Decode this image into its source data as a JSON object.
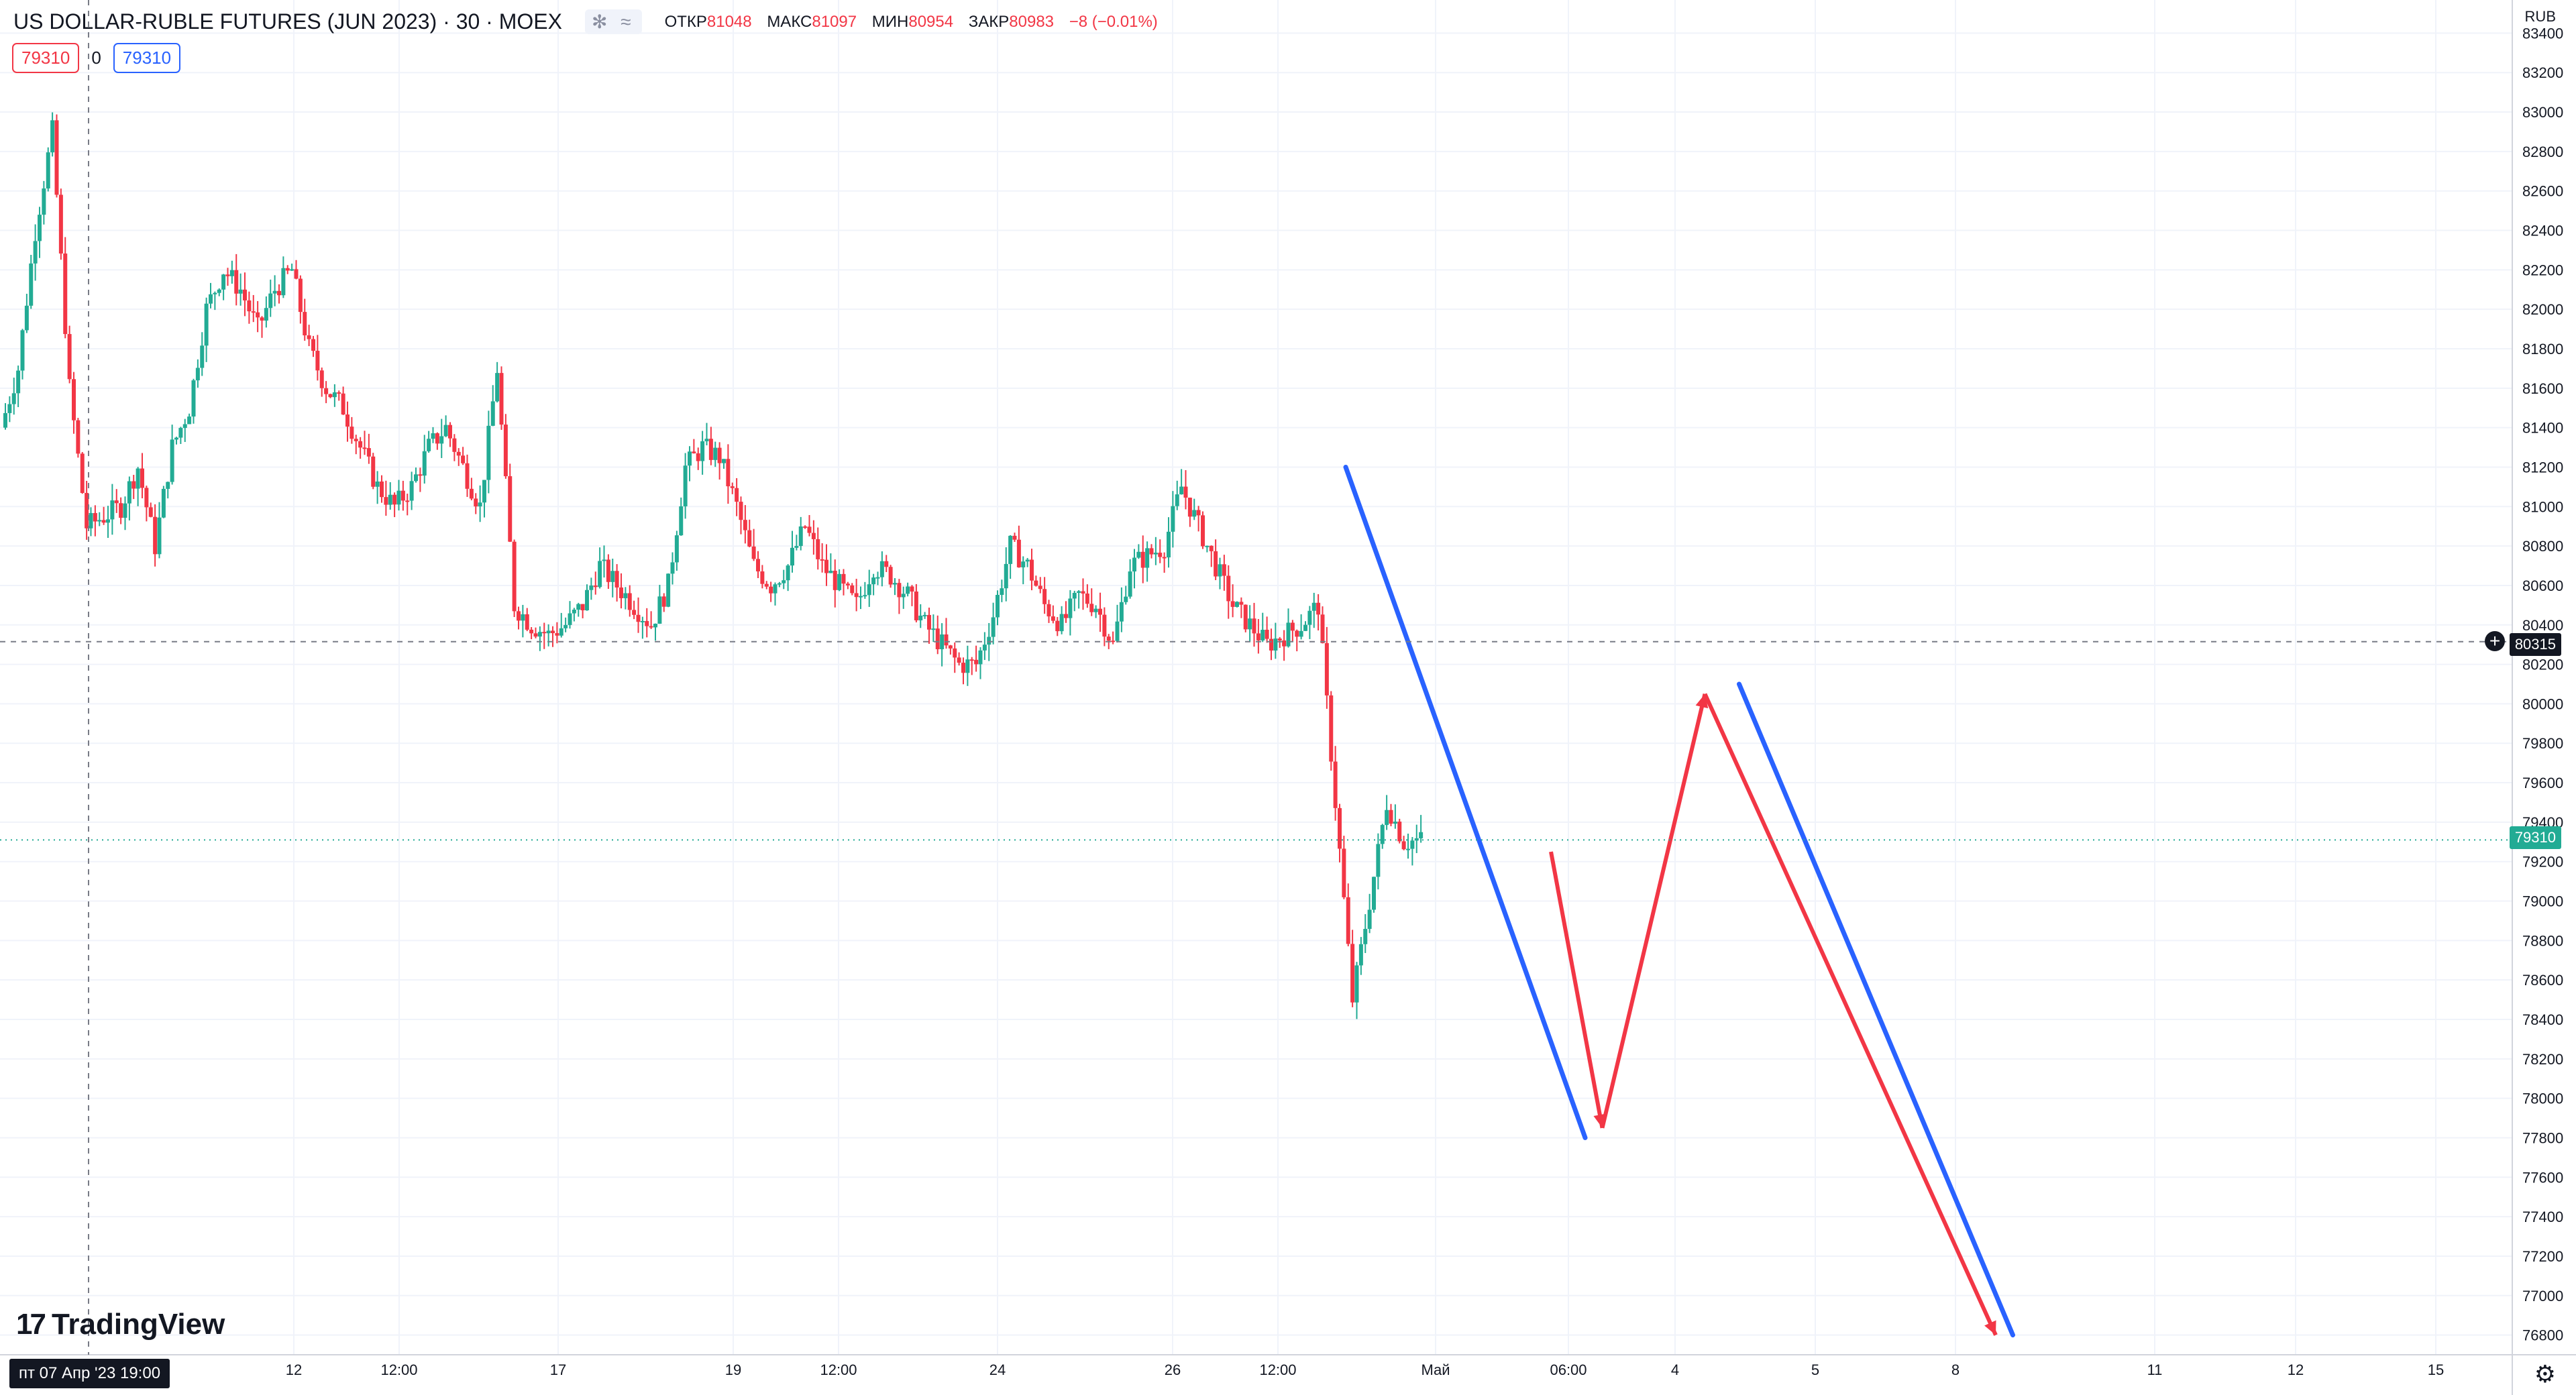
{
  "symbol_title": "US DOLLAR-RUBLE FUTURES (JUN 2023) · 30 · MOEX",
  "header_icons": "✻ ≈",
  "ohlc": {
    "open_label": "ОТКР",
    "open": "81048",
    "high_label": "МАКС",
    "high": "81097",
    "low_label": "МИН",
    "low": "80954",
    "close_label": "ЗАКР",
    "close": "80983",
    "change": "−8 (−0.01%)"
  },
  "trade": {
    "sell": "79310",
    "spread": "0",
    "buy": "79310"
  },
  "brand": {
    "mark": "17",
    "name": "TradingView"
  },
  "currency": "RUB",
  "crosshair": {
    "price": "80315",
    "date_label": "пт 07 Апр '23   19:00"
  },
  "last_price": "79310",
  "colors": {
    "up": "#22ab94",
    "down": "#f23645",
    "blue": "#2962ff",
    "arrow_red": "#f23645",
    "grid": "#f0f3fa"
  },
  "icons": {
    "plus": "plus-circle-icon",
    "settings": "gear-icon"
  },
  "y_axis_ticks": [
    "83400",
    "83200",
    "83000",
    "82800",
    "82600",
    "82400",
    "82200",
    "82000",
    "81800",
    "81600",
    "81400",
    "81200",
    "81000",
    "80800",
    "80600",
    "80400",
    "80200",
    "80000",
    "79800",
    "79600",
    "79400",
    "79200",
    "79000",
    "78800",
    "78600",
    "78400",
    "78200",
    "78000",
    "77800",
    "77600",
    "77400",
    "77200",
    "77000",
    "76800"
  ],
  "x_axis_labels": [
    "12",
    "12:00",
    "17",
    "19",
    "12:00",
    "24",
    "26",
    "12:00",
    "Май",
    "06:00",
    "4",
    "5",
    "8",
    "11",
    "12",
    "15"
  ],
  "chart_data": {
    "type": "candlestick",
    "y_range": [
      76700,
      83500
    ],
    "price_path": [
      81400,
      81700,
      82400,
      82900,
      81600,
      80900,
      80950,
      81000,
      81200,
      80800,
      81300,
      81500,
      82000,
      82200,
      82100,
      81900,
      82100,
      82200,
      81800,
      81600,
      81500,
      81300,
      81100,
      81000,
      81100,
      81300,
      81400,
      81200,
      81000,
      81700,
      80500,
      80400,
      80350,
      80400,
      80500,
      80700,
      80600,
      80500,
      80400,
      80600,
      81200,
      81300,
      81250,
      81000,
      80700,
      80600,
      80700,
      80900,
      80700,
      80600,
      80500,
      80700,
      80650,
      80550,
      80400,
      80300,
      80200,
      80200,
      80450,
      80800,
      80700,
      80500,
      80400,
      80550,
      80500,
      80300,
      80700,
      80750,
      80800,
      81100,
      80900,
      80700,
      80500,
      80400,
      80300,
      80350,
      80400,
      80500,
      79500,
      78500,
      79000,
      79500,
      79300,
      79310
    ],
    "drawings": [
      {
        "kind": "trend_line",
        "color": "blue",
        "from": {
          "bar": 76,
          "price": 81200
        },
        "to": {
          "bar": 90,
          "price": 77800
        }
      },
      {
        "kind": "trend_line",
        "color": "blue",
        "from": {
          "bar": 99,
          "price": 80100
        },
        "to": {
          "bar": 115,
          "price": 76800
        }
      },
      {
        "kind": "arrow_path",
        "color": "red",
        "points": [
          {
            "bar": 88,
            "price": 79250
          },
          {
            "bar": 91,
            "price": 77850
          },
          {
            "bar": 97,
            "price": 80050
          },
          {
            "bar": 114,
            "price": 76800
          }
        ]
      }
    ]
  }
}
